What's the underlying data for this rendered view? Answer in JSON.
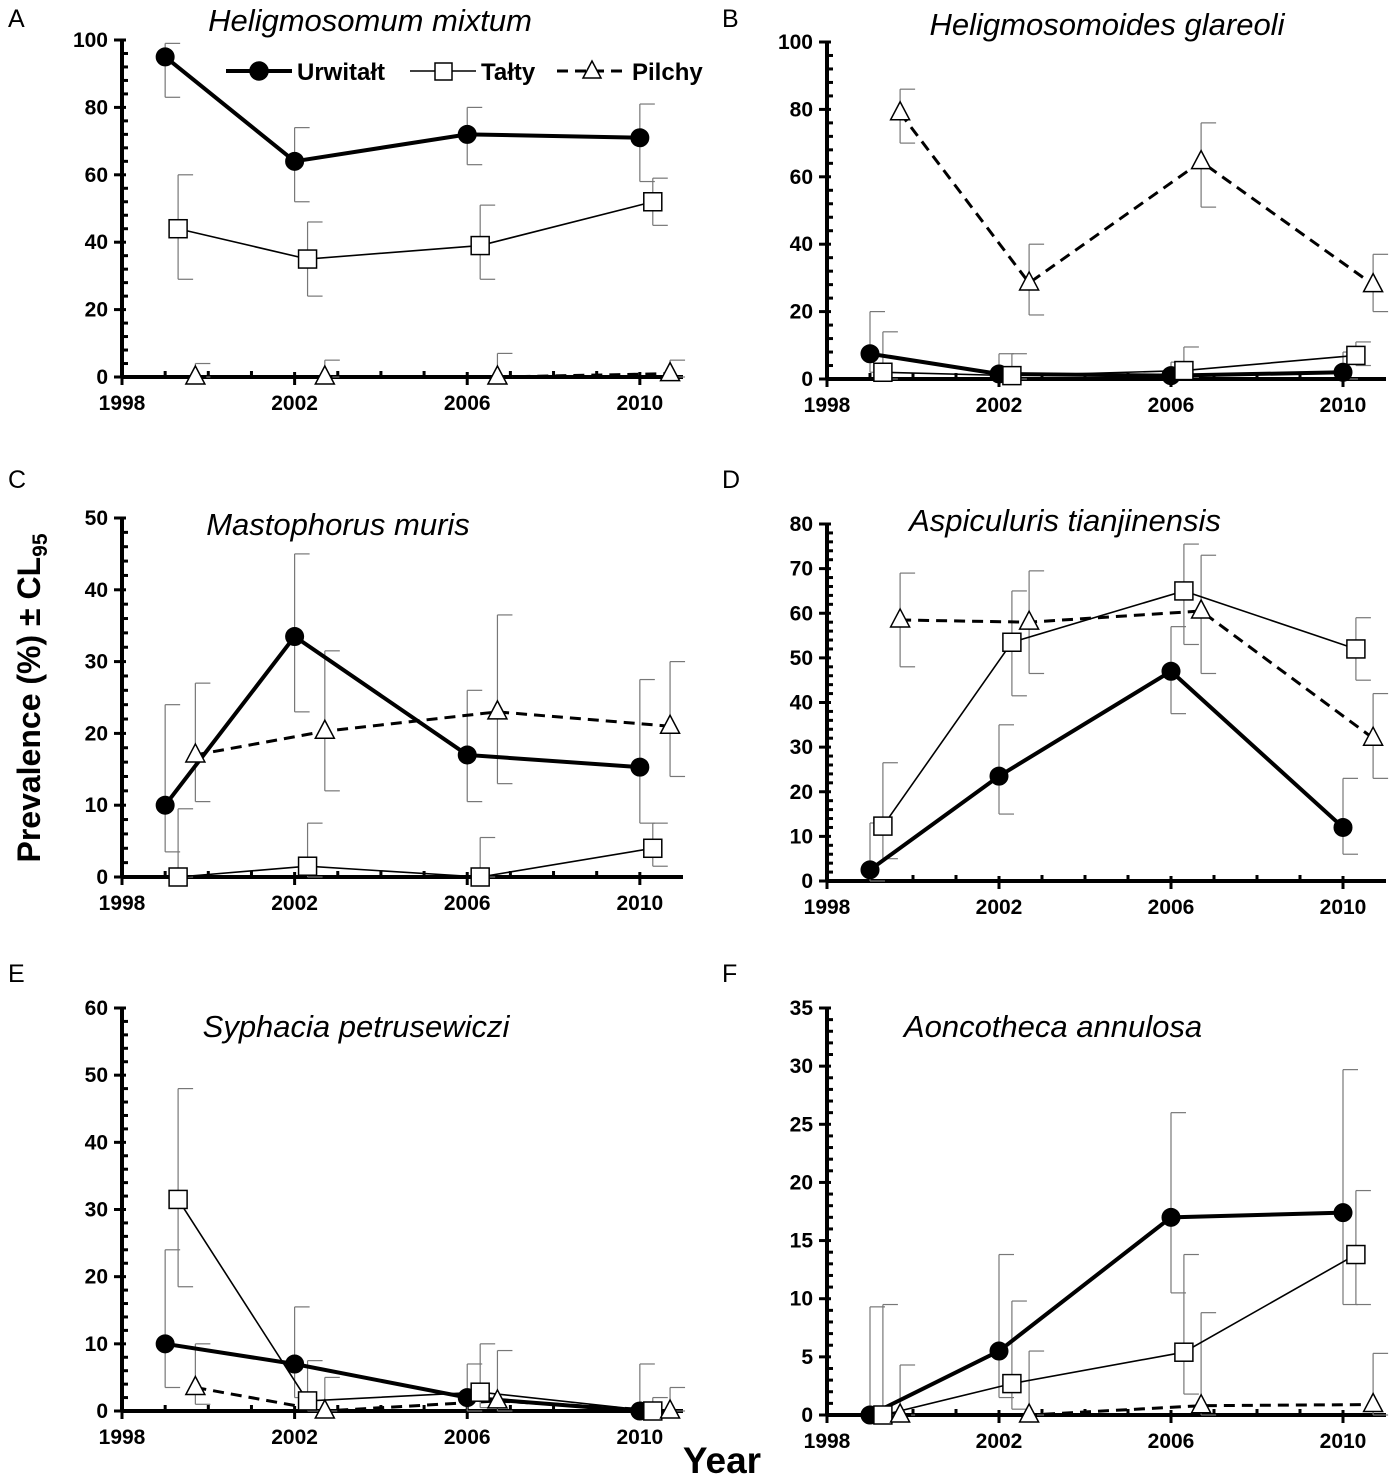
{
  "axis_labels": {
    "ylabel_main": "Prevalence (%) ± CL",
    "ylabel_sub": "95",
    "xlabel": "Year"
  },
  "legend": [
    {
      "name": "Urwitałt",
      "marker": "filled-circle",
      "line": "thick-solid"
    },
    {
      "name": "Tałty",
      "marker": "open-square",
      "line": "thin-solid"
    },
    {
      "name": "Pilchy",
      "marker": "open-triangle",
      "line": "dashed"
    }
  ],
  "chart_data": [
    {
      "type": "line",
      "letter": "A",
      "title": "Heligmosomum mixtum",
      "xlim": [
        1998,
        2011
      ],
      "xticks": [
        1998,
        2002,
        2006,
        2010
      ],
      "ylim": [
        0,
        100
      ],
      "yticks": [
        0,
        20,
        40,
        60,
        80,
        100
      ],
      "series": [
        {
          "name": "Urwitałt",
          "x": [
            1999,
            2002,
            2006,
            2010
          ],
          "y": [
            95,
            64,
            72,
            71
          ],
          "lower": [
            83,
            52,
            63,
            58
          ],
          "upper": [
            99,
            74,
            80,
            81
          ]
        },
        {
          "name": "Tałty",
          "x": [
            1999.3,
            2002.3,
            2006.3,
            2010.3
          ],
          "y": [
            44,
            35,
            39,
            52
          ],
          "lower": [
            29,
            24,
            29,
            45
          ],
          "upper": [
            60,
            46,
            51,
            59
          ]
        },
        {
          "name": "Pilchy",
          "x": [
            1999.7,
            2002.7,
            2006.7,
            2010.7
          ],
          "y": [
            0,
            0,
            0,
            1
          ],
          "lower": [
            0,
            0,
            0,
            0
          ],
          "upper": [
            4,
            5,
            7,
            5
          ]
        }
      ]
    },
    {
      "type": "line",
      "letter": "B",
      "title": "Heligmosomoides glareoli",
      "xlim": [
        1998,
        2011
      ],
      "xticks": [
        1998,
        2002,
        2006,
        2010
      ],
      "ylim": [
        0,
        100
      ],
      "yticks": [
        0,
        20,
        40,
        60,
        80,
        100
      ],
      "series": [
        {
          "name": "Urwitałt",
          "x": [
            1999,
            2002,
            2006,
            2010
          ],
          "y": [
            7.5,
            1.5,
            1,
            2
          ],
          "lower": [
            2,
            0,
            0,
            0
          ],
          "upper": [
            20,
            7.5,
            5,
            8
          ]
        },
        {
          "name": "Tałty",
          "x": [
            1999.3,
            2002.3,
            2006.3,
            2010.3
          ],
          "y": [
            2,
            1,
            2.5,
            7
          ],
          "lower": [
            0,
            0,
            0.5,
            4
          ],
          "upper": [
            14,
            7.5,
            9.5,
            11
          ]
        },
        {
          "name": "Pilchy",
          "x": [
            1999.7,
            2002.7,
            2006.7,
            2010.7
          ],
          "y": [
            79,
            28.5,
            64.5,
            28
          ],
          "lower": [
            70,
            19,
            51,
            20
          ],
          "upper": [
            86,
            40,
            76,
            37
          ]
        }
      ]
    },
    {
      "type": "line",
      "letter": "C",
      "title": "Mastophorus muris",
      "xlim": [
        1998,
        2011
      ],
      "xticks": [
        1998,
        2002,
        2006,
        2010
      ],
      "ylim": [
        0,
        50
      ],
      "yticks": [
        0,
        10,
        20,
        30,
        40,
        50
      ],
      "series": [
        {
          "name": "Urwitałt",
          "x": [
            1999,
            2002,
            2006,
            2010
          ],
          "y": [
            10,
            33.5,
            17,
            15.3
          ],
          "lower": [
            3.5,
            23,
            10.5,
            7.5
          ],
          "upper": [
            24,
            45,
            26,
            27.5
          ]
        },
        {
          "name": "Tałty",
          "x": [
            1999.3,
            2002.3,
            2006.3,
            2010.3
          ],
          "y": [
            0,
            1.5,
            0,
            4
          ],
          "lower": [
            0,
            0,
            0,
            1.5
          ],
          "upper": [
            9.5,
            7.5,
            5.5,
            7.5
          ]
        },
        {
          "name": "Pilchy",
          "x": [
            1999.7,
            2002.7,
            2006.7,
            2010.7
          ],
          "y": [
            17,
            20.3,
            23,
            21
          ],
          "lower": [
            10.5,
            12,
            13,
            14
          ],
          "upper": [
            27,
            31.5,
            36.5,
            30
          ]
        }
      ]
    },
    {
      "type": "line",
      "letter": "D",
      "title": "Aspiculuris tianjinensis",
      "xlim": [
        1998,
        2011
      ],
      "xticks": [
        1998,
        2002,
        2006,
        2010
      ],
      "ylim": [
        0,
        80
      ],
      "yticks": [
        0,
        10,
        20,
        30,
        40,
        50,
        60,
        70,
        80
      ],
      "series": [
        {
          "name": "Urwitałt",
          "x": [
            1999,
            2002,
            2006,
            2010
          ],
          "y": [
            2.5,
            23.5,
            47,
            12
          ],
          "lower": [
            0,
            15,
            37.5,
            6
          ],
          "upper": [
            13,
            35,
            57,
            23
          ]
        },
        {
          "name": "Tałty",
          "x": [
            1999.3,
            2002.3,
            2006.3,
            2010.3
          ],
          "y": [
            12.3,
            53.5,
            65,
            52
          ],
          "lower": [
            5,
            41.5,
            53,
            45
          ],
          "upper": [
            26.5,
            65,
            75.5,
            59
          ]
        },
        {
          "name": "Pilchy",
          "x": [
            1999.7,
            2002.7,
            2006.7,
            2010.7
          ],
          "y": [
            58.5,
            58,
            60.5,
            32
          ],
          "lower": [
            48,
            46.5,
            46.5,
            23
          ],
          "upper": [
            69,
            69.5,
            73,
            42
          ]
        }
      ]
    },
    {
      "type": "line",
      "letter": "E",
      "title": "Syphacia petrusewiczi",
      "xlim": [
        1998,
        2011
      ],
      "xticks": [
        1998,
        2002,
        2006,
        2010
      ],
      "ylim": [
        0,
        60
      ],
      "yticks": [
        0,
        10,
        20,
        30,
        40,
        50,
        60
      ],
      "series": [
        {
          "name": "Urwitałt",
          "x": [
            1999,
            2002,
            2006,
            2010
          ],
          "y": [
            10,
            7,
            2,
            0
          ],
          "lower": [
            3.5,
            2,
            0,
            0
          ],
          "upper": [
            24,
            15.5,
            7,
            7
          ]
        },
        {
          "name": "Tałty",
          "x": [
            1999.3,
            2002.3,
            2006.3,
            2010.3
          ],
          "y": [
            31.5,
            1.5,
            2.8,
            0
          ],
          "lower": [
            18.5,
            0,
            0.5,
            0
          ],
          "upper": [
            48,
            7.5,
            10,
            2
          ]
        },
        {
          "name": "Pilchy",
          "x": [
            1999.7,
            2002.7,
            2006.7,
            2010.7
          ],
          "y": [
            3.5,
            0,
            1.5,
            0
          ],
          "lower": [
            1,
            0,
            0,
            0
          ],
          "upper": [
            10,
            5,
            9,
            3.5
          ]
        }
      ]
    },
    {
      "type": "line",
      "letter": "F",
      "title": "Aoncotheca annulosa",
      "xlim": [
        1998,
        2011
      ],
      "xticks": [
        1998,
        2002,
        2006,
        2010
      ],
      "ylim": [
        0,
        35
      ],
      "yticks": [
        0,
        5,
        10,
        15,
        20,
        25,
        30,
        35
      ],
      "series": [
        {
          "name": "Urwitałt",
          "x": [
            1999,
            2002,
            2006,
            2010
          ],
          "y": [
            0,
            5.5,
            17,
            17.4
          ],
          "lower": [
            0,
            1.5,
            10.5,
            9.5
          ],
          "upper": [
            9.3,
            13.8,
            26,
            29.7
          ]
        },
        {
          "name": "Tałty",
          "x": [
            1999.3,
            2002.3,
            2006.3,
            2010.3
          ],
          "y": [
            0,
            2.7,
            5.4,
            13.8
          ],
          "lower": [
            0,
            0.5,
            1.8,
            9.5
          ],
          "upper": [
            9.5,
            9.8,
            13.8,
            19.3
          ]
        },
        {
          "name": "Pilchy",
          "x": [
            1999.7,
            2002.7,
            2006.7,
            2010.7
          ],
          "y": [
            0,
            0,
            0.8,
            0.9
          ],
          "lower": [
            0,
            0,
            0,
            0
          ],
          "upper": [
            4.3,
            5.5,
            8.8,
            5.3
          ]
        }
      ]
    }
  ]
}
